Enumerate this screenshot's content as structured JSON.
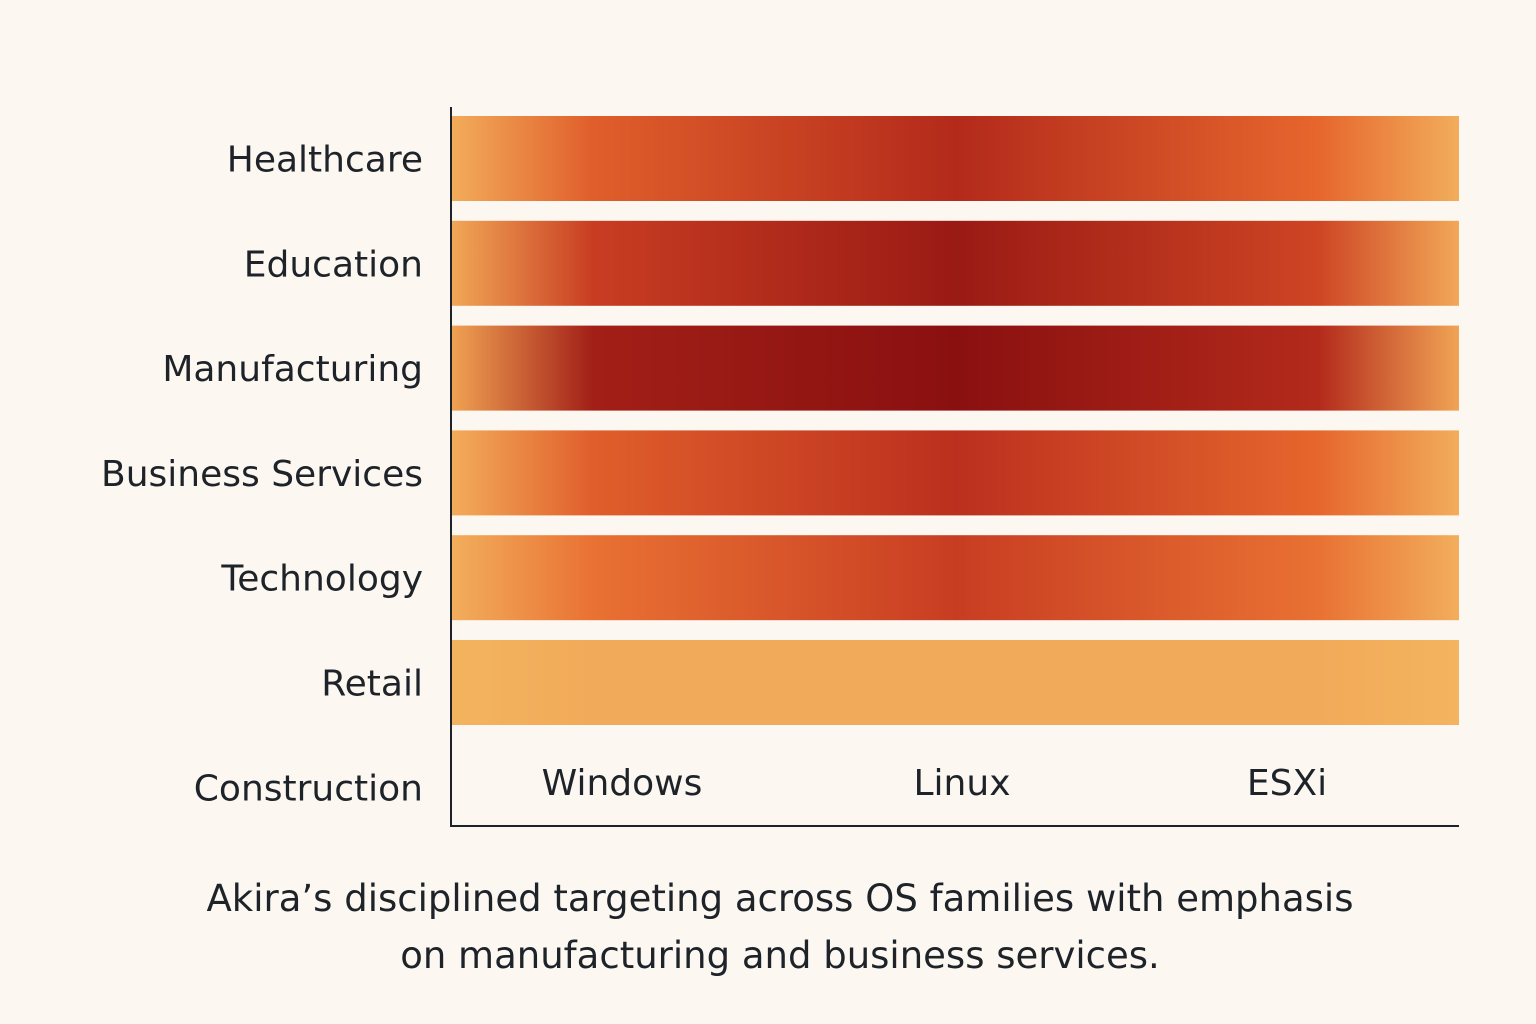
{
  "chart_data": {
    "type": "heatmap",
    "title": "",
    "caption": "Akira’s disciplined targeting across OS families with emphasis on manufacturing and business services.",
    "caption_lines": [
      "Akira’s disciplined targeting across OS families with emphasis",
      "on manufacturing and business services."
    ],
    "columns": [
      "Windows",
      "Linux",
      "ESXi"
    ],
    "rows": [
      "Healthcare",
      "Education",
      "Manufacturing",
      "Business Services",
      "Technology",
      "Retail",
      "Construction"
    ],
    "values": [
      [
        0.4,
        0.75,
        0.35
      ],
      [
        0.6,
        0.9,
        0.55
      ],
      [
        0.85,
        1.0,
        0.75
      ],
      [
        0.4,
        0.7,
        0.35
      ],
      [
        0.3,
        0.6,
        0.3
      ],
      [
        0.05,
        0.05,
        0.05
      ],
      [
        null,
        null,
        null
      ]
    ],
    "value_range": [
      0,
      1
    ],
    "colorscale": [
      "#f3b560",
      "#e8692e",
      "#c0321f",
      "#8a1010"
    ],
    "background": "#fcf8f1",
    "grid": false,
    "legend": "none"
  }
}
